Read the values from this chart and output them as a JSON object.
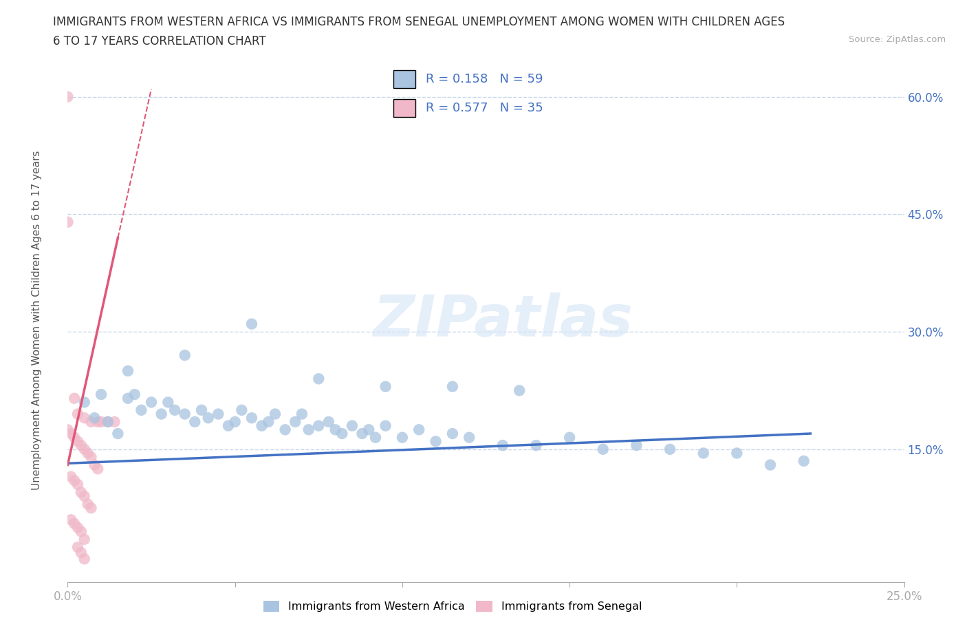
{
  "title_line1": "IMMIGRANTS FROM WESTERN AFRICA VS IMMIGRANTS FROM SENEGAL UNEMPLOYMENT AMONG WOMEN WITH CHILDREN AGES",
  "title_line2": "6 TO 17 YEARS CORRELATION CHART",
  "source": "Source: ZipAtlas.com",
  "ylabel": "Unemployment Among Women with Children Ages 6 to 17 years",
  "xlim": [
    0.0,
    0.25
  ],
  "ylim": [
    -0.02,
    0.65
  ],
  "legend_box": {
    "R1": "0.158",
    "N1": "59",
    "R2": "0.577",
    "N2": "35"
  },
  "watermark": "ZIPatlas",
  "blue_color": "#a8c4e0",
  "pink_color": "#f0b8c8",
  "blue_line_color": "#4472c4",
  "pink_line_color": "#e05878",
  "text_color": "#4472c4",
  "grid_color": "#c8d8ec",
  "blue_scatter_x": [
    0.005,
    0.008,
    0.01,
    0.012,
    0.015,
    0.018,
    0.02,
    0.022,
    0.025,
    0.028,
    0.03,
    0.032,
    0.035,
    0.038,
    0.04,
    0.042,
    0.045,
    0.048,
    0.05,
    0.052,
    0.055,
    0.058,
    0.06,
    0.062,
    0.065,
    0.068,
    0.07,
    0.072,
    0.075,
    0.078,
    0.08,
    0.082,
    0.085,
    0.088,
    0.09,
    0.092,
    0.095,
    0.1,
    0.105,
    0.11,
    0.115,
    0.12,
    0.13,
    0.14,
    0.15,
    0.16,
    0.17,
    0.18,
    0.19,
    0.2,
    0.21,
    0.018,
    0.035,
    0.055,
    0.075,
    0.095,
    0.115,
    0.135,
    0.22
  ],
  "blue_scatter_y": [
    0.21,
    0.19,
    0.22,
    0.185,
    0.17,
    0.215,
    0.22,
    0.2,
    0.21,
    0.195,
    0.21,
    0.2,
    0.195,
    0.185,
    0.2,
    0.19,
    0.195,
    0.18,
    0.185,
    0.2,
    0.19,
    0.18,
    0.185,
    0.195,
    0.175,
    0.185,
    0.195,
    0.175,
    0.18,
    0.185,
    0.175,
    0.17,
    0.18,
    0.17,
    0.175,
    0.165,
    0.18,
    0.165,
    0.175,
    0.16,
    0.17,
    0.165,
    0.155,
    0.155,
    0.165,
    0.15,
    0.155,
    0.15,
    0.145,
    0.145,
    0.13,
    0.25,
    0.27,
    0.31,
    0.24,
    0.23,
    0.23,
    0.225,
    0.135
  ],
  "pink_scatter_x": [
    0.0,
    0.0,
    0.002,
    0.003,
    0.005,
    0.007,
    0.009,
    0.01,
    0.012,
    0.014,
    0.0,
    0.001,
    0.002,
    0.003,
    0.004,
    0.005,
    0.006,
    0.007,
    0.008,
    0.009,
    0.001,
    0.002,
    0.003,
    0.004,
    0.005,
    0.006,
    0.007,
    0.001,
    0.002,
    0.003,
    0.004,
    0.005,
    0.003,
    0.004,
    0.005
  ],
  "pink_scatter_y": [
    0.6,
    0.44,
    0.215,
    0.195,
    0.19,
    0.185,
    0.185,
    0.185,
    0.185,
    0.185,
    0.175,
    0.17,
    0.165,
    0.16,
    0.155,
    0.15,
    0.145,
    0.14,
    0.13,
    0.125,
    0.115,
    0.11,
    0.105,
    0.095,
    0.09,
    0.08,
    0.075,
    0.06,
    0.055,
    0.05,
    0.045,
    0.035,
    0.025,
    0.018,
    0.01
  ]
}
